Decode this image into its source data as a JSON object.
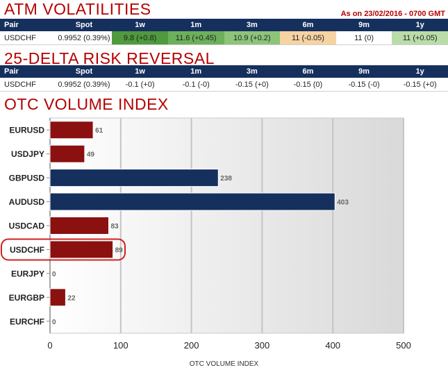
{
  "atm": {
    "title": "ATM VOLATILITIES",
    "asof": "As on 23/02/2016 - 0700 GMT",
    "headers": [
      "Pair",
      "Spot",
      "1w",
      "1m",
      "3m",
      "6m",
      "9m",
      "1y"
    ],
    "row": [
      "USDCHF",
      "0.9952 (0.39%)",
      "9.8 (+0.8)",
      "11.6 (+0.45)",
      "10.9 (+0.2)",
      "11 (-0.05)",
      "11 (0)",
      "11 (+0.05)"
    ],
    "cell_colors": [
      "",
      "",
      "#4f9a3e",
      "#6db05c",
      "#8cc47a",
      "#f6d3a3",
      "",
      "#b9dca9"
    ]
  },
  "rr": {
    "title": "25-DELTA RISK REVERSAL",
    "headers": [
      "Pair",
      "Spot",
      "1w",
      "1m",
      "3m",
      "6m",
      "9m",
      "1y"
    ],
    "row": [
      "USDCHF",
      "0.9952 (0.39%)",
      "-0.1 (+0)",
      "-0.1 (-0)",
      "-0.15 (+0)",
      "-0.15 (0)",
      "-0.15 (-0)",
      "-0.15 (+0)"
    ]
  },
  "otc": {
    "title": "OTC VOLUME INDEX"
  },
  "chart_data": {
    "type": "bar",
    "orientation": "horizontal",
    "categories": [
      "EURUSD",
      "USDJPY",
      "GBPUSD",
      "AUDUSD",
      "USDCAD",
      "USDCHF",
      "EURJPY",
      "EURGBP",
      "EURCHF"
    ],
    "values": [
      61,
      49,
      238,
      403,
      83,
      89,
      0,
      22,
      0
    ],
    "bar_colors": [
      "#8b1010",
      "#8b1010",
      "#16305e",
      "#16305e",
      "#8b1010",
      "#8b1010",
      "#8b1010",
      "#8b1010",
      "#8b1010"
    ],
    "highlight": "USDCHF",
    "highlight_color": "#d42020",
    "xlabel": "OTC VOLUME INDEX",
    "xlim": [
      0,
      500
    ],
    "xticks": [
      "0",
      "100",
      "200",
      "300",
      "400",
      "500"
    ],
    "grid": true
  }
}
